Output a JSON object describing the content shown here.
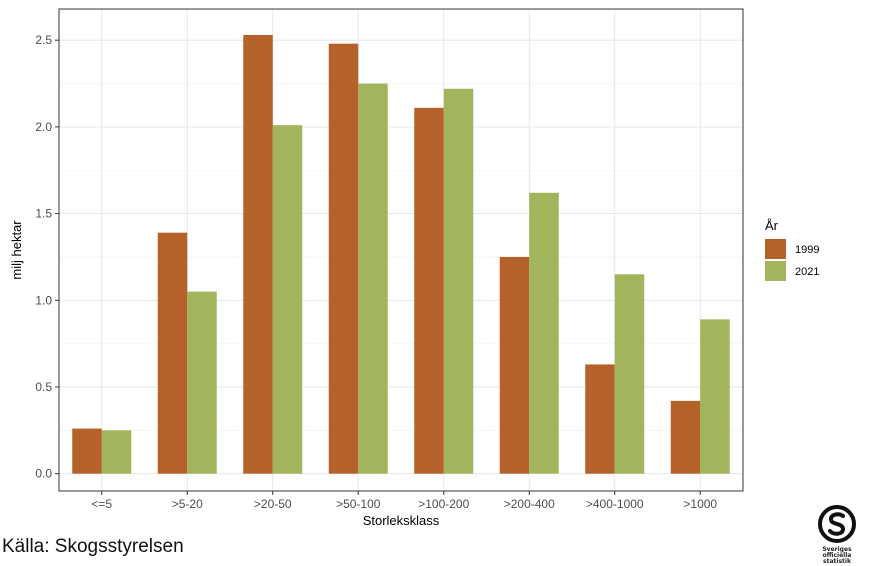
{
  "chart_data": {
    "type": "bar",
    "categories": [
      "<=5",
      ">5-20",
      ">20-50",
      ">50-100",
      ">100-200",
      ">200-400",
      ">400-1000",
      ">1000"
    ],
    "series": [
      {
        "name": "1999",
        "color": "#B5612A",
        "values": [
          0.26,
          1.39,
          2.53,
          2.48,
          2.11,
          1.25,
          0.63,
          0.42
        ]
      },
      {
        "name": "2021",
        "color": "#A2B55C",
        "values": [
          0.25,
          1.05,
          2.01,
          2.25,
          2.22,
          1.62,
          1.15,
          0.89
        ]
      }
    ],
    "xlabel": "Storleksklass",
    "ylabel": "milj hektar",
    "ylim": [
      -0.1,
      2.68
    ],
    "yticks": [
      0.0,
      0.5,
      1.0,
      1.5,
      2.0,
      2.5
    ],
    "ytick_labels": [
      "0.0",
      "0.5",
      "1.0",
      "1.5",
      "2.0",
      "2.5"
    ],
    "legend": {
      "title": "År",
      "position": "right"
    },
    "grid": true
  },
  "source_text": "Källa: Skogsstyrelsen",
  "logo": {
    "text": "Sveriges officiella statistik",
    "icon": "sos-logo-icon"
  }
}
